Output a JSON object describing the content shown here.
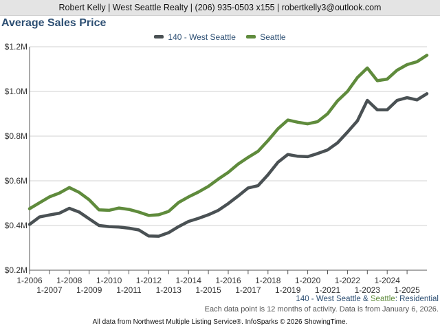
{
  "header": {
    "contact": "Robert Kelly | West Seattle Realty | (206) 935-0503 x155 | robertkelly3@outlook.com"
  },
  "caption": {
    "area": "140 - West Seattle",
    "amp": " & ",
    "city": "Seattle",
    "type": ": Residential"
  },
  "note": "Each data point is 12 months of activity. Data is from January 6, 2026.",
  "footer": "All data from Northwest Multiple Listing Service®. InfoSparks © 2026 ShowingTime.",
  "colors": {
    "west_seattle": "#4a5154",
    "seattle": "#5f8b3c",
    "title": "#2d4f73",
    "grid": "#d0d0d0"
  },
  "chart_data": {
    "type": "line",
    "title": "Average Sales Price",
    "xlabel": "",
    "ylabel": "",
    "ylim": [
      200000,
      1200000
    ],
    "xlim": [
      2006.0,
      2026.0
    ],
    "y_ticks": [
      {
        "value": 200000,
        "label": "$0.2M"
      },
      {
        "value": 400000,
        "label": "$0.4M"
      },
      {
        "value": 600000,
        "label": "$0.6M"
      },
      {
        "value": 800000,
        "label": "$0.8M"
      },
      {
        "value": 1000000,
        "label": "$1.0M"
      },
      {
        "value": 1200000,
        "label": "$1.2M"
      }
    ],
    "x_ticks": [
      {
        "value": 2006,
        "label": "1-2006",
        "row": 1
      },
      {
        "value": 2007,
        "label": "1-2007",
        "row": 2
      },
      {
        "value": 2008,
        "label": "1-2008",
        "row": 1
      },
      {
        "value": 2009,
        "label": "1-2009",
        "row": 2
      },
      {
        "value": 2010,
        "label": "1-2010",
        "row": 1
      },
      {
        "value": 2011,
        "label": "1-2011",
        "row": 2
      },
      {
        "value": 2012,
        "label": "1-2012",
        "row": 1
      },
      {
        "value": 2013,
        "label": "1-2013",
        "row": 2
      },
      {
        "value": 2014,
        "label": "1-2014",
        "row": 1
      },
      {
        "value": 2015,
        "label": "1-2015",
        "row": 2
      },
      {
        "value": 2016,
        "label": "1-2016",
        "row": 1
      },
      {
        "value": 2017,
        "label": "1-2017",
        "row": 2
      },
      {
        "value": 2018,
        "label": "1-2018",
        "row": 1
      },
      {
        "value": 2019,
        "label": "1-2019",
        "row": 2
      },
      {
        "value": 2020,
        "label": "1-2020",
        "row": 1
      },
      {
        "value": 2021,
        "label": "1-2021",
        "row": 2
      },
      {
        "value": 2022,
        "label": "1-2022",
        "row": 1
      },
      {
        "value": 2023,
        "label": "1-2023",
        "row": 2
      },
      {
        "value": 2024,
        "label": "1-2024",
        "row": 1
      },
      {
        "value": 2025,
        "label": "1-2025",
        "row": 2
      }
    ],
    "grid": true,
    "legend": "top-center",
    "series": [
      {
        "name": "140 - West Seattle",
        "color": "#4a5154",
        "x": [
          2006.0,
          2006.5,
          2007.0,
          2007.5,
          2008.0,
          2008.5,
          2009.0,
          2009.5,
          2010.0,
          2010.5,
          2011.0,
          2011.5,
          2012.0,
          2012.5,
          2013.0,
          2013.5,
          2014.0,
          2014.5,
          2015.0,
          2015.5,
          2016.0,
          2016.5,
          2017.0,
          2017.5,
          2018.0,
          2018.5,
          2019.0,
          2019.5,
          2020.0,
          2020.5,
          2021.0,
          2021.5,
          2022.0,
          2022.5,
          2023.0,
          2023.5,
          2024.0,
          2024.5,
          2025.0,
          2025.5,
          2026.0
        ],
        "values": [
          405000,
          438000,
          447000,
          455000,
          477000,
          460000,
          430000,
          400000,
          395000,
          393000,
          388000,
          380000,
          353000,
          352000,
          368000,
          395000,
          418000,
          432000,
          448000,
          468000,
          498000,
          532000,
          568000,
          578000,
          627000,
          683000,
          718000,
          710000,
          708000,
          722000,
          738000,
          770000,
          818000,
          868000,
          960000,
          918000,
          918000,
          960000,
          972000,
          962000,
          990000
        ]
      },
      {
        "name": "Seattle",
        "color": "#5f8b3c",
        "x": [
          2006.0,
          2006.5,
          2007.0,
          2007.5,
          2008.0,
          2008.5,
          2009.0,
          2009.5,
          2010.0,
          2010.5,
          2011.0,
          2011.5,
          2012.0,
          2012.5,
          2013.0,
          2013.5,
          2014.0,
          2014.5,
          2015.0,
          2015.5,
          2016.0,
          2016.5,
          2017.0,
          2017.5,
          2018.0,
          2018.5,
          2019.0,
          2019.5,
          2020.0,
          2020.5,
          2021.0,
          2021.5,
          2022.0,
          2022.5,
          2023.0,
          2023.5,
          2024.0,
          2024.5,
          2025.0,
          2025.5,
          2026.0
        ],
        "values": [
          475000,
          502000,
          528000,
          545000,
          570000,
          548000,
          515000,
          470000,
          468000,
          478000,
          472000,
          460000,
          445000,
          448000,
          463000,
          503000,
          528000,
          550000,
          575000,
          608000,
          638000,
          675000,
          705000,
          732000,
          780000,
          833000,
          872000,
          862000,
          855000,
          865000,
          900000,
          958000,
          1000000,
          1062000,
          1105000,
          1048000,
          1055000,
          1095000,
          1120000,
          1133000,
          1162000
        ]
      }
    ]
  }
}
